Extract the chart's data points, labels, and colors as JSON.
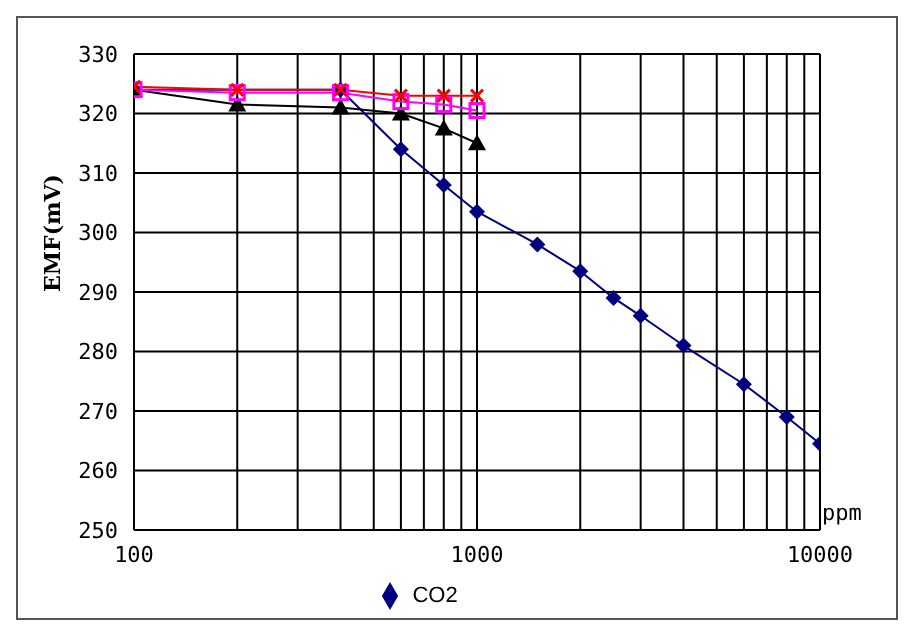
{
  "chart_data": {
    "type": "line",
    "xlabel": "ppm",
    "ylabel": "EMF(mV)",
    "log": "x",
    "grid": true,
    "legend": "bottom",
    "xlim": [
      100,
      10000
    ],
    "xticks": [
      100,
      {
        "value": 200,
        "label": null
      },
      {
        "value": 300,
        "label": null
      },
      {
        "value": 400,
        "label": null
      },
      {
        "value": 500,
        "label": null
      },
      {
        "value": 600,
        "label": null
      },
      {
        "value": 700,
        "label": null
      },
      {
        "value": 800,
        "label": null
      },
      {
        "value": 900,
        "label": null
      },
      1000,
      {
        "value": 2000,
        "label": null
      },
      {
        "value": 3000,
        "label": null
      },
      {
        "value": 4000,
        "label": null
      },
      {
        "value": 5000,
        "label": null
      },
      {
        "value": 6000,
        "label": null
      },
      {
        "value": 7000,
        "label": null
      },
      {
        "value": 8000,
        "label": null
      },
      {
        "value": 9000,
        "label": null
      },
      10000
    ],
    "ylim": [
      250,
      330
    ],
    "yticks": [
      250,
      260,
      270,
      280,
      290,
      300,
      310,
      320,
      330
    ],
    "series": [
      {
        "name": "CO2",
        "color": "#000080",
        "marker": "diamond",
        "x": [
          100,
          400,
          600,
          800,
          1000,
          1500,
          2000,
          2500,
          3000,
          4000,
          6000,
          8000,
          10000
        ],
        "values": [
          324,
          324,
          314,
          308,
          303.5,
          298,
          293.5,
          289,
          286,
          281,
          274.5,
          269,
          264.5
        ]
      },
      {
        "color": "#000000",
        "marker": "triangle",
        "x": [
          100,
          200,
          400,
          600,
          800,
          1000
        ],
        "values": [
          324,
          321.5,
          321,
          320,
          317.5,
          315
        ]
      },
      {
        "color": "#ff00ff",
        "marker": "square",
        "x": [
          100,
          200,
          400,
          600,
          800,
          1000
        ],
        "values": [
          324,
          323.5,
          323.5,
          322,
          321.5,
          320.5
        ]
      },
      {
        "color": "#ff0000",
        "marker": "cross",
        "x": [
          100,
          200,
          400,
          600,
          800,
          1000
        ],
        "values": [
          324.5,
          324,
          324,
          323,
          323,
          323
        ]
      }
    ]
  }
}
